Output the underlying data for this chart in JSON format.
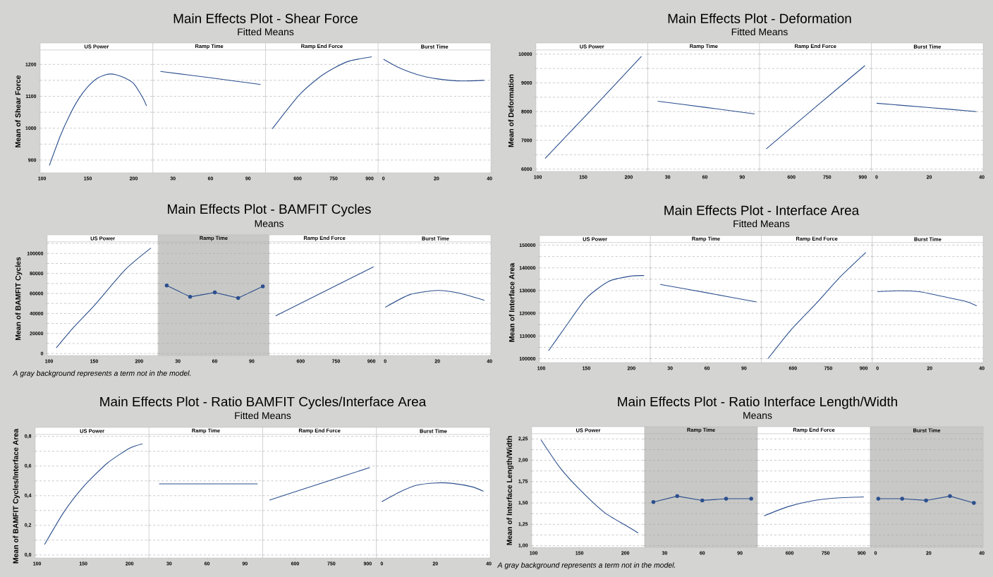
{
  "chart_data": [
    {
      "type": "other",
      "title": "Main Effects Plot - Shear Force",
      "subtitle": "Fitted Means"
    },
    {
      "type": "line",
      "xlabel": "US Power",
      "ylabel": "Mean of Shear Force",
      "color": "#2b4f8e",
      "grid": "y",
      "x": [
        108,
        120,
        130,
        140,
        150,
        160,
        170,
        175,
        180,
        190,
        200,
        210,
        214
      ],
      "values": [
        883,
        976,
        1040,
        1092,
        1130,
        1156,
        1168,
        1170,
        1168,
        1158,
        1140,
        1095,
        1070
      ],
      "xlim": [
        98,
        221
      ],
      "xticks": [
        100,
        150,
        200
      ],
      "ylim": [
        860,
        1245
      ],
      "yticks": [
        900,
        {
          "value": 950,
          "label": null
        },
        1000,
        {
          "value": 1050,
          "label": null
        },
        1100,
        {
          "value": 1150,
          "label": null
        },
        1200
      ]
    },
    {
      "type": "line",
      "xlabel": "Ramp Time",
      "color": "#2b4f8e",
      "grid": "y",
      "tick_labels": "x",
      "x": [
        20,
        60,
        100
      ],
      "values": [
        1178,
        1158,
        1137
      ],
      "xlim": [
        14,
        104
      ],
      "xticks": [
        30,
        60,
        90
      ],
      "ylim": [
        860,
        1245
      ],
      "yticks": [
        900,
        {
          "value": 950,
          "label": null
        },
        1000,
        {
          "value": 1050,
          "label": null
        },
        1100,
        {
          "value": 1150,
          "label": null
        },
        1200
      ]
    },
    {
      "type": "line",
      "xlabel": "Ramp End Force",
      "color": "#2b4f8e",
      "grid": "y",
      "tick_labels": "x",
      "x": [
        494,
        604,
        684,
        750,
        817,
        909
      ],
      "values": [
        998,
        1102,
        1156,
        1188,
        1211,
        1224
      ],
      "xlim": [
        466,
        936
      ],
      "xticks": [
        600,
        750,
        900
      ],
      "ylim": [
        860,
        1245
      ],
      "yticks": [
        900,
        {
          "value": 950,
          "label": null
        },
        1000,
        {
          "value": 1050,
          "label": null
        },
        1100,
        {
          "value": 1150,
          "label": null
        },
        1200
      ]
    },
    {
      "type": "line",
      "xlabel": "Burst Time",
      "color": "#2b4f8e",
      "grid": "y",
      "tick_labels": "x",
      "x": [
        0,
        5,
        10,
        15,
        20,
        25,
        30,
        38
      ],
      "values": [
        1216,
        1193,
        1176,
        1163,
        1155,
        1150,
        1148,
        1150
      ],
      "xlim": [
        -2,
        40.5
      ],
      "xticks": [
        0,
        20,
        40
      ],
      "ylim": [
        860,
        1245
      ],
      "yticks": [
        900,
        {
          "value": 950,
          "label": null
        },
        1000,
        {
          "value": 1050,
          "label": null
        },
        1100,
        {
          "value": 1150,
          "label": null
        },
        1200
      ]
    },
    {
      "type": "other",
      "title": "Main Effects Plot - Deformation",
      "subtitle": "Fitted Means"
    },
    {
      "type": "line",
      "xlabel": "US Power",
      "ylabel": "Mean of Deformation",
      "color": "#2b4f8e",
      "grid": "y",
      "x": [
        108,
        160,
        214
      ],
      "values": [
        6370,
        8100,
        9920
      ],
      "xlim": [
        98,
        221
      ],
      "xticks": [
        100,
        150,
        200
      ],
      "ylim": [
        5920,
        10140
      ],
      "yticks": [
        6000,
        {
          "value": 6500,
          "label": null
        },
        7000,
        {
          "value": 7500,
          "label": null
        },
        8000,
        {
          "value": 8500,
          "label": null
        },
        9000,
        {
          "value": 9500,
          "label": null
        },
        10000
      ]
    },
    {
      "type": "line",
      "xlabel": "Ramp Time",
      "color": "#2b4f8e",
      "grid": "y",
      "tick_labels": "x",
      "x": [
        22,
        60,
        100
      ],
      "values": [
        8360,
        8150,
        7920
      ],
      "xlim": [
        14,
        104
      ],
      "xticks": [
        30,
        60,
        90
      ],
      "ylim": [
        5920,
        10140
      ],
      "yticks": [
        6000,
        {
          "value": 6500,
          "label": null
        },
        7000,
        {
          "value": 7500,
          "label": null
        },
        8000,
        {
          "value": 8500,
          "label": null
        },
        9000,
        {
          "value": 9500,
          "label": null
        },
        10000
      ]
    },
    {
      "type": "line",
      "xlabel": "Ramp End Force",
      "color": "#2b4f8e",
      "grid": "y",
      "tick_labels": "x",
      "x": [
        494,
        700,
        909
      ],
      "values": [
        6700,
        8150,
        9600
      ],
      "xlim": [
        466,
        936
      ],
      "xticks": [
        600,
        750,
        900
      ],
      "ylim": [
        5920,
        10140
      ],
      "yticks": [
        6000,
        {
          "value": 6500,
          "label": null
        },
        7000,
        {
          "value": 7500,
          "label": null
        },
        8000,
        {
          "value": 8500,
          "label": null
        },
        9000,
        {
          "value": 9500,
          "label": null
        },
        10000
      ]
    },
    {
      "type": "line",
      "xlabel": "Burst Time",
      "color": "#2b4f8e",
      "grid": "y",
      "tick_labels": "x",
      "x": [
        0,
        20,
        38
      ],
      "values": [
        8290,
        8140,
        8000
      ],
      "xlim": [
        -2,
        40.5
      ],
      "xticks": [
        0,
        20,
        40
      ],
      "ylim": [
        5920,
        10140
      ],
      "yticks": [
        6000,
        {
          "value": 6500,
          "label": null
        },
        7000,
        {
          "value": 7500,
          "label": null
        },
        8000,
        {
          "value": 8500,
          "label": null
        },
        9000,
        {
          "value": 9500,
          "label": null
        },
        10000
      ]
    },
    {
      "type": "other",
      "title": "Main Effects Plot - BAMFIT Cycles",
      "subtitle": "Means"
    },
    {
      "type": "line",
      "xlabel": "US Power",
      "ylabel": "Mean of BAMFIT Cycles",
      "annotations": [
        "A gray background represents a term not in the model."
      ],
      "color": "#2b4f8e",
      "grid": "y",
      "x": [
        108,
        128,
        150,
        185,
        213
      ],
      "values": [
        5700,
        27000,
        47800,
        84200,
        105400
      ],
      "xlim": [
        98,
        221
      ],
      "xticks": [
        100,
        150,
        200
      ],
      "ylim": [
        -2000,
        111500
      ],
      "yticks": [
        0,
        {
          "value": 10000,
          "label": null
        },
        20000,
        {
          "value": 30000,
          "label": null
        },
        40000,
        {
          "value": 50000,
          "label": null
        },
        60000,
        {
          "value": 70000,
          "label": null
        },
        80000,
        {
          "value": 90000,
          "label": null
        },
        100000,
        {
          "value": 110000,
          "label": null
        }
      ]
    },
    {
      "type": "line",
      "xlabel": "Ramp Time",
      "color": "#2b4f8e",
      "grid": "y",
      "tick_labels": "x",
      "marker": "circle",
      "bands": [
        {
          "axis": "x",
          "from": 14,
          "to": 104,
          "color": "#c8c8c6"
        }
      ],
      "x": [
        21,
        40,
        60,
        79,
        99
      ],
      "values": [
        68000,
        56600,
        61000,
        55400,
        67100
      ],
      "xlim": [
        14,
        104
      ],
      "xticks": [
        30,
        60,
        90
      ],
      "ylim": [
        -2000,
        111500
      ],
      "yticks": [
        0,
        {
          "value": 10000,
          "label": null
        },
        20000,
        {
          "value": 30000,
          "label": null
        },
        40000,
        {
          "value": 50000,
          "label": null
        },
        60000,
        {
          "value": 70000,
          "label": null
        },
        80000,
        {
          "value": 90000,
          "label": null
        },
        100000,
        {
          "value": 110000,
          "label": null
        }
      ]
    },
    {
      "type": "line",
      "xlabel": "Ramp End Force",
      "color": "#2b4f8e",
      "grid": "y",
      "tick_labels": "x",
      "x": [
        494,
        700,
        909
      ],
      "values": [
        37700,
        62000,
        86700
      ],
      "xlim": [
        466,
        936
      ],
      "xticks": [
        600,
        750,
        900
      ],
      "ylim": [
        -2000,
        111500
      ],
      "yticks": [
        0,
        {
          "value": 10000,
          "label": null
        },
        20000,
        {
          "value": 30000,
          "label": null
        },
        40000,
        {
          "value": 50000,
          "label": null
        },
        60000,
        {
          "value": 70000,
          "label": null
        },
        80000,
        {
          "value": 90000,
          "label": null
        },
        100000,
        {
          "value": 110000,
          "label": null
        }
      ]
    },
    {
      "type": "line",
      "xlabel": "Burst Time",
      "color": "#2b4f8e",
      "grid": "y",
      "tick_labels": "x",
      "x": [
        0,
        9.5,
        20,
        28,
        38
      ],
      "values": [
        46200,
        58900,
        63000,
        60500,
        53200
      ],
      "xlim": [
        -2,
        40.5
      ],
      "xticks": [
        0,
        20,
        40
      ],
      "ylim": [
        -2000,
        111500
      ],
      "yticks": [
        0,
        {
          "value": 10000,
          "label": null
        },
        20000,
        {
          "value": 30000,
          "label": null
        },
        40000,
        {
          "value": 50000,
          "label": null
        },
        60000,
        {
          "value": 70000,
          "label": null
        },
        80000,
        {
          "value": 90000,
          "label": null
        },
        100000,
        {
          "value": 110000,
          "label": null
        }
      ]
    },
    {
      "type": "other",
      "title": "Main Effects Plot - Interface Area",
      "subtitle": "Fitted Means"
    },
    {
      "type": "line",
      "xlabel": "US Power",
      "ylabel": "Mean of Interface Area",
      "color": "#2b4f8e",
      "grid": "y",
      "x": [
        108,
        126,
        150,
        175,
        200,
        214
      ],
      "values": [
        103500,
        113600,
        126700,
        134100,
        136400,
        136600
      ],
      "xlim": [
        98,
        221
      ],
      "xticks": [
        100,
        150,
        200
      ],
      "ylim": [
        98300,
        151100
      ],
      "yticks": [
        100000,
        {
          "value": 105000,
          "label": null
        },
        110000,
        {
          "value": 115000,
          "label": null
        },
        120000,
        {
          "value": 125000,
          "label": null
        },
        130000,
        {
          "value": 135000,
          "label": null
        },
        140000,
        {
          "value": 145000,
          "label": null
        },
        150000
      ]
    },
    {
      "type": "line",
      "xlabel": "Ramp Time",
      "color": "#2b4f8e",
      "grid": "y",
      "tick_labels": "x",
      "x": [
        22,
        60,
        100
      ],
      "values": [
        132700,
        129000,
        125000
      ],
      "xlim": [
        14,
        104
      ],
      "xticks": [
        30,
        60,
        90
      ],
      "ylim": [
        98300,
        151100
      ],
      "yticks": [
        100000,
        {
          "value": 105000,
          "label": null
        },
        110000,
        {
          "value": 115000,
          "label": null
        },
        120000,
        {
          "value": 125000,
          "label": null
        },
        130000,
        {
          "value": 135000,
          "label": null
        },
        140000,
        {
          "value": 145000,
          "label": null
        },
        150000
      ]
    },
    {
      "type": "line",
      "xlabel": "Ramp End Force",
      "color": "#2b4f8e",
      "grid": "y",
      "tick_labels": "x",
      "x": [
        494,
        590,
        700,
        800,
        909
      ],
      "values": [
        100000,
        112500,
        124500,
        136000,
        146800
      ],
      "xlim": [
        466,
        936
      ],
      "xticks": [
        600,
        750,
        900
      ],
      "ylim": [
        98300,
        151100
      ],
      "yticks": [
        100000,
        {
          "value": 105000,
          "label": null
        },
        110000,
        {
          "value": 115000,
          "label": null
        },
        120000,
        {
          "value": 125000,
          "label": null
        },
        130000,
        {
          "value": 135000,
          "label": null
        },
        140000,
        {
          "value": 145000,
          "label": null
        },
        150000
      ]
    },
    {
      "type": "line",
      "xlabel": "Burst Time",
      "color": "#2b4f8e",
      "grid": "y",
      "tick_labels": "x",
      "x": [
        0,
        8,
        16,
        25,
        33.6,
        38
      ],
      "values": [
        129500,
        129900,
        129500,
        127400,
        125300,
        123300
      ],
      "xlim": [
        -2,
        40.5
      ],
      "xticks": [
        0,
        20,
        40
      ],
      "ylim": [
        98300,
        151100
      ],
      "yticks": [
        100000,
        {
          "value": 105000,
          "label": null
        },
        110000,
        {
          "value": 115000,
          "label": null
        },
        120000,
        {
          "value": 125000,
          "label": null
        },
        130000,
        {
          "value": 135000,
          "label": null
        },
        140000,
        {
          "value": 145000,
          "label": null
        },
        150000
      ]
    },
    {
      "type": "other",
      "title": "Main Effects Plot - Ratio BAMFIT Cycles/Interface Area",
      "subtitle": "Fitted Means"
    },
    {
      "type": "line",
      "xlabel": "US Power",
      "ylabel": "Mean of BAMFIT Cycles/Interface Area",
      "color": "#2b4f8e",
      "grid": "y",
      "x": [
        108,
        129,
        150,
        176,
        200,
        214
      ],
      "values": [
        0.07,
        0.29,
        0.46,
        0.62,
        0.72,
        0.75
      ],
      "xlim": [
        98,
        221
      ],
      "xticks": [
        100,
        150,
        200
      ],
      "ylim": [
        -0.02,
        0.813
      ],
      "yticks": [
        {
          "value": 0,
          "label": "0,0"
        },
        {
          "value": 0.1,
          "label": null
        },
        {
          "value": 0.2,
          "label": "0,2"
        },
        {
          "value": 0.3,
          "label": null
        },
        {
          "value": 0.4,
          "label": "0,4"
        },
        {
          "value": 0.5,
          "label": null
        },
        {
          "value": 0.6,
          "label": "0,6"
        },
        {
          "value": 0.7,
          "label": null
        },
        {
          "value": 0.8,
          "label": "0,8"
        }
      ]
    },
    {
      "type": "line",
      "xlabel": "Ramp Time",
      "color": "#2b4f8e",
      "grid": "y",
      "tick_labels": "x",
      "x": [
        22,
        60,
        100
      ],
      "values": [
        0.48,
        0.48,
        0.48
      ],
      "xlim": [
        14,
        104
      ],
      "xticks": [
        30,
        60,
        90
      ],
      "ylim": [
        -0.02,
        0.813
      ],
      "yticks": [
        {
          "value": 0,
          "label": null
        },
        {
          "value": 0.1,
          "label": null
        },
        {
          "value": 0.2,
          "label": null
        },
        {
          "value": 0.3,
          "label": null
        },
        {
          "value": 0.4,
          "label": null
        },
        {
          "value": 0.5,
          "label": null
        },
        {
          "value": 0.6,
          "label": null
        },
        {
          "value": 0.7,
          "label": null
        },
        {
          "value": 0.8,
          "label": null
        }
      ]
    },
    {
      "type": "line",
      "xlabel": "Ramp End Force",
      "color": "#2b4f8e",
      "grid": "y",
      "tick_labels": "x",
      "x": [
        494,
        700,
        909
      ],
      "values": [
        0.37,
        0.48,
        0.59
      ],
      "xlim": [
        466,
        936
      ],
      "xticks": [
        600,
        750,
        900
      ],
      "ylim": [
        -0.02,
        0.813
      ],
      "yticks": [
        {
          "value": 0,
          "label": null
        },
        {
          "value": 0.1,
          "label": null
        },
        {
          "value": 0.2,
          "label": null
        },
        {
          "value": 0.3,
          "label": null
        },
        {
          "value": 0.4,
          "label": null
        },
        {
          "value": 0.5,
          "label": null
        },
        {
          "value": 0.6,
          "label": null
        },
        {
          "value": 0.7,
          "label": null
        },
        {
          "value": 0.8,
          "label": null
        }
      ]
    },
    {
      "type": "line",
      "xlabel": "Burst Time",
      "color": "#2b4f8e",
      "grid": "y",
      "tick_labels": "x",
      "x": [
        0,
        6.7,
        12.9,
        20,
        26,
        33.7,
        38
      ],
      "values": [
        0.36,
        0.425,
        0.47,
        0.486,
        0.484,
        0.46,
        0.43
      ],
      "xlim": [
        -2,
        40.5
      ],
      "xticks": [
        0,
        20,
        40
      ],
      "ylim": [
        -0.02,
        0.813
      ],
      "yticks": [
        {
          "value": 0,
          "label": null
        },
        {
          "value": 0.1,
          "label": null
        },
        {
          "value": 0.2,
          "label": null
        },
        {
          "value": 0.3,
          "label": null
        },
        {
          "value": 0.4,
          "label": null
        },
        {
          "value": 0.5,
          "label": null
        },
        {
          "value": 0.6,
          "label": null
        },
        {
          "value": 0.7,
          "label": null
        },
        {
          "value": 0.8,
          "label": null
        }
      ]
    },
    {
      "type": "other",
      "title": "Main Effects Plot - Ratio Interface Length/Width",
      "subtitle": "Means"
    },
    {
      "type": "line",
      "xlabel": "US Power",
      "ylabel": "Mean of Interface Length/Width",
      "annotations": [
        "A gray background represents a term not in the model."
      ],
      "color": "#2b4f8e",
      "grid": "y",
      "x": [
        108,
        129,
        150,
        177,
        200,
        214
      ],
      "values": [
        2.24,
        1.91,
        1.66,
        1.39,
        1.24,
        1.15
      ],
      "xlim": [
        98,
        221
      ],
      "xticks": [
        100,
        150,
        200
      ],
      "ylim": [
        0.98,
        2.31
      ],
      "yticks": [
        {
          "value": 1,
          "label": "1,00"
        },
        {
          "value": 1.125,
          "label": null
        },
        {
          "value": 1.25,
          "label": "1,25"
        },
        {
          "value": 1.375,
          "label": null
        },
        {
          "value": 1.5,
          "label": "1,50"
        },
        {
          "value": 1.625,
          "label": null
        },
        {
          "value": 1.75,
          "label": "1,75"
        },
        {
          "value": 1.875,
          "label": null
        },
        {
          "value": 2,
          "label": "2,00"
        },
        {
          "value": 2.125,
          "label": null
        },
        {
          "value": 2.25,
          "label": "2,25"
        }
      ]
    },
    {
      "type": "line",
      "xlabel": "Ramp Time",
      "color": "#2b4f8e",
      "grid": "y",
      "tick_labels": "x",
      "marker": "circle",
      "bands": [
        {
          "axis": "x",
          "from": 14,
          "to": 104,
          "color": "#c8c8c6"
        }
      ],
      "x": [
        21,
        40,
        60,
        79,
        99
      ],
      "values": [
        1.51,
        1.58,
        1.53,
        1.55,
        1.55
      ],
      "xlim": [
        14,
        104
      ],
      "xticks": [
        30,
        60,
        90
      ],
      "ylim": [
        0.98,
        2.31
      ],
      "yticks": [
        {
          "value": 1,
          "label": null
        },
        {
          "value": 1.125,
          "label": null
        },
        {
          "value": 1.25,
          "label": null
        },
        {
          "value": 1.375,
          "label": null
        },
        {
          "value": 1.5,
          "label": null
        },
        {
          "value": 1.625,
          "label": null
        },
        {
          "value": 1.75,
          "label": null
        },
        {
          "value": 1.875,
          "label": null
        },
        {
          "value": 2,
          "label": null
        },
        {
          "value": 2.125,
          "label": null
        },
        {
          "value": 2.25,
          "label": null
        }
      ]
    },
    {
      "type": "line",
      "xlabel": "Ramp End Force",
      "color": "#2b4f8e",
      "grid": "y",
      "tick_labels": "x",
      "x": [
        494,
        597,
        703,
        809,
        909
      ],
      "values": [
        1.35,
        1.46,
        1.53,
        1.56,
        1.57
      ],
      "xlim": [
        466,
        936
      ],
      "xticks": [
        600,
        750,
        900
      ],
      "ylim": [
        0.98,
        2.31
      ],
      "yticks": [
        {
          "value": 1,
          "label": null
        },
        {
          "value": 1.125,
          "label": null
        },
        {
          "value": 1.25,
          "label": null
        },
        {
          "value": 1.375,
          "label": null
        },
        {
          "value": 1.5,
          "label": null
        },
        {
          "value": 1.625,
          "label": null
        },
        {
          "value": 1.75,
          "label": null
        },
        {
          "value": 1.875,
          "label": null
        },
        {
          "value": 2,
          "label": null
        },
        {
          "value": 2.125,
          "label": null
        },
        {
          "value": 2.25,
          "label": null
        }
      ]
    },
    {
      "type": "line",
      "xlabel": "Burst Time",
      "color": "#2b4f8e",
      "grid": "y",
      "tick_labels": "x",
      "marker": "circle",
      "bands": [
        {
          "axis": "x",
          "from": -2,
          "to": 40.5,
          "color": "#c8c8c6"
        }
      ],
      "x": [
        1,
        10,
        19,
        28,
        37
      ],
      "values": [
        1.55,
        1.55,
        1.53,
        1.58,
        1.5
      ],
      "xlim": [
        -2,
        40.5
      ],
      "xticks": [
        0,
        20,
        40
      ],
      "ylim": [
        0.98,
        2.31
      ],
      "yticks": [
        {
          "value": 1,
          "label": null
        },
        {
          "value": 1.125,
          "label": null
        },
        {
          "value": 1.25,
          "label": null
        },
        {
          "value": 1.375,
          "label": null
        },
        {
          "value": 1.5,
          "label": null
        },
        {
          "value": 1.625,
          "label": null
        },
        {
          "value": 1.75,
          "label": null
        },
        {
          "value": 1.875,
          "label": null
        },
        {
          "value": 2,
          "label": null
        },
        {
          "value": 2.125,
          "label": null
        },
        {
          "value": 2.25,
          "label": null
        }
      ]
    }
  ]
}
